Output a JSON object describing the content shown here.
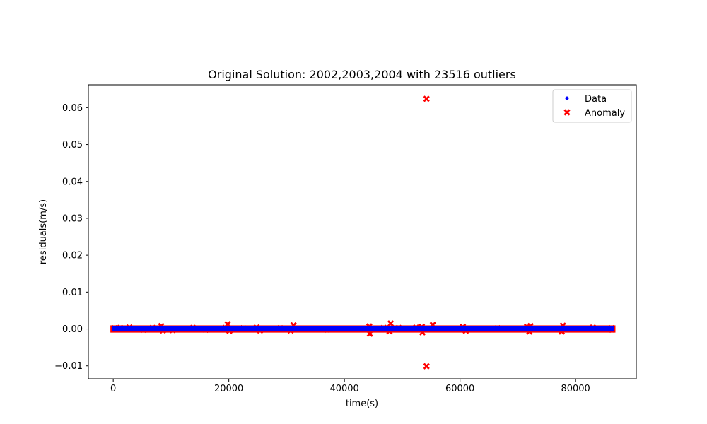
{
  "chart_data": {
    "type": "scatter",
    "title": "Original Solution: 2002,2003,2004 with 23516 outliers",
    "xlabel": "time(s)",
    "ylabel": "residuals(m/s)",
    "xlim": [
      -4300,
      90500
    ],
    "ylim": [
      -0.0135,
      0.0662
    ],
    "xticks": [
      0,
      20000,
      40000,
      60000,
      80000
    ],
    "xtick_labels": [
      "0",
      "20000",
      "40000",
      "60000",
      "80000"
    ],
    "yticks": [
      -0.01,
      0.0,
      0.01,
      0.02,
      0.03,
      0.04,
      0.05,
      0.06
    ],
    "ytick_labels": [
      "−0.01",
      "0.00",
      "0.01",
      "0.02",
      "0.03",
      "0.04",
      "0.05",
      "0.06"
    ],
    "grid": false,
    "legend_position": "top-right",
    "series": [
      {
        "name": "Data",
        "marker": "dot",
        "color": "#0000ff",
        "x_range": [
          0,
          86400
        ],
        "y_spread": 0.0002
      },
      {
        "name": "Anomaly",
        "marker": "x",
        "color": "#ff0000",
        "band_x_range": [
          0,
          86400
        ],
        "band_y_spread": 0.0004,
        "points": [
          {
            "x": 200,
            "y": 0.0002
          },
          {
            "x": 1200,
            "y": 0.0003
          },
          {
            "x": 2800,
            "y": 0.0004
          },
          {
            "x": 5200,
            "y": -0.0002
          },
          {
            "x": 6800,
            "y": 0.0003
          },
          {
            "x": 8300,
            "y": 0.0008
          },
          {
            "x": 8600,
            "y": -0.0004
          },
          {
            "x": 10300,
            "y": -0.0003
          },
          {
            "x": 13800,
            "y": 0.0003
          },
          {
            "x": 16000,
            "y": -0.0002
          },
          {
            "x": 19400,
            "y": 0.0003
          },
          {
            "x": 19800,
            "y": 0.0013
          },
          {
            "x": 20100,
            "y": -0.0005
          },
          {
            "x": 22500,
            "y": 0.0002
          },
          {
            "x": 24800,
            "y": 0.0004
          },
          {
            "x": 25400,
            "y": -0.0004
          },
          {
            "x": 28900,
            "y": 0.0002
          },
          {
            "x": 31200,
            "y": 0.001
          },
          {
            "x": 30700,
            "y": -0.0004
          },
          {
            "x": 37000,
            "y": -0.0002
          },
          {
            "x": 44300,
            "y": 0.0007
          },
          {
            "x": 44400,
            "y": -0.0013
          },
          {
            "x": 46800,
            "y": 0.0003
          },
          {
            "x": 47800,
            "y": -0.0006
          },
          {
            "x": 48000,
            "y": 0.0015
          },
          {
            "x": 49400,
            "y": 0.0003
          },
          {
            "x": 52400,
            "y": 0.0004
          },
          {
            "x": 53400,
            "y": 0.0006
          },
          {
            "x": 53500,
            "y": -0.0009
          },
          {
            "x": 54200,
            "y": 0.0624
          },
          {
            "x": 54200,
            "y": -0.0101
          },
          {
            "x": 55300,
            "y": 0.0011
          },
          {
            "x": 60500,
            "y": 0.0006
          },
          {
            "x": 61000,
            "y": -0.0005
          },
          {
            "x": 66500,
            "y": 0.0002
          },
          {
            "x": 71600,
            "y": 0.0006
          },
          {
            "x": 72200,
            "y": 0.0008
          },
          {
            "x": 72000,
            "y": -0.0007
          },
          {
            "x": 77800,
            "y": 0.0009
          },
          {
            "x": 77600,
            "y": -0.0007
          },
          {
            "x": 83000,
            "y": 0.0004
          },
          {
            "x": 86200,
            "y": 0.0002
          },
          {
            "x": 86300,
            "y": -0.0002
          }
        ]
      }
    ]
  }
}
